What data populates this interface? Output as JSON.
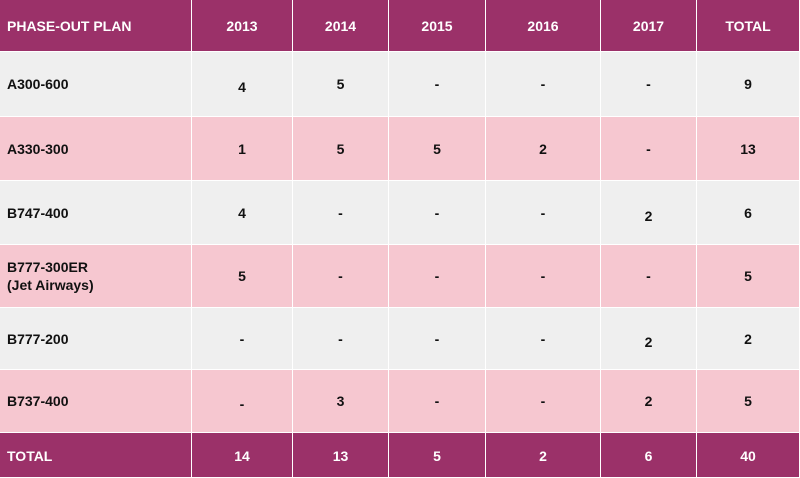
{
  "table": {
    "header": [
      "PHASE-OUT PLAN",
      "2013",
      "2014",
      "2015",
      "2016",
      "2017",
      "TOTAL"
    ],
    "rows": [
      {
        "name": "A300-600",
        "name_line2": "",
        "values": [
          "4",
          "5",
          "-",
          "-",
          "-",
          "9"
        ]
      },
      {
        "name": "A330-300",
        "name_line2": "",
        "values": [
          "1",
          "5",
          "5",
          "2",
          "-",
          "13"
        ]
      },
      {
        "name": "B747-400",
        "name_line2": "",
        "values": [
          "4",
          "-",
          "-",
          "-",
          "2",
          "6"
        ]
      },
      {
        "name": "B777-300ER",
        "name_line2": "(Jet Airways)",
        "values": [
          "5",
          "-",
          "-",
          "-",
          "-",
          "5"
        ]
      },
      {
        "name": "B777-200",
        "name_line2": "",
        "values": [
          "-",
          "-",
          "-",
          "-",
          "2",
          "2"
        ]
      },
      {
        "name": "B737-400",
        "name_line2": "",
        "values": [
          "-",
          "3",
          "-",
          "-",
          "2",
          "5"
        ]
      }
    ],
    "footer": [
      "TOTAL",
      "14",
      "13",
      "5",
      "2",
      "6",
      "40"
    ]
  },
  "colors": {
    "header_bg": "#9b3169",
    "header_text": "#ffffff",
    "row_gray": "#efefef",
    "row_pink": "#f6c7d0"
  }
}
